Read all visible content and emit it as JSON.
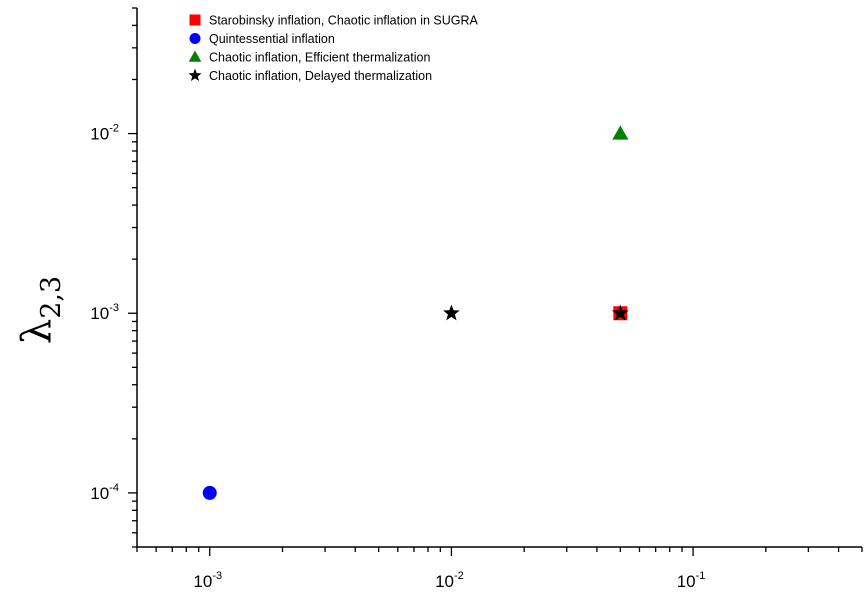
{
  "chart_data": {
    "type": "scatter",
    "title": "",
    "xlabel": "",
    "ylabel": {
      "symbol": "λ",
      "subscript": "2,3"
    },
    "x_scale": "log",
    "y_scale": "log",
    "xlim": [
      0.0005,
      0.5
    ],
    "ylim": [
      5e-05,
      0.05
    ],
    "x_ticks": [
      {
        "value": 0.001,
        "base": "10",
        "exp": "-3"
      },
      {
        "value": 0.01,
        "base": "10",
        "exp": "-2"
      },
      {
        "value": 0.1,
        "base": "10",
        "exp": "-1"
      }
    ],
    "y_ticks": [
      {
        "value": 0.0001,
        "base": "10",
        "exp": "-4"
      },
      {
        "value": 0.001,
        "base": "10",
        "exp": "-3"
      },
      {
        "value": 0.01,
        "base": "10",
        "exp": "-2"
      }
    ],
    "grid": false,
    "legend_position": "top-left",
    "series": [
      {
        "name": "Starobinsky inflation, Chaotic inflation in SUGRA",
        "marker": "square",
        "color": "#ff0000",
        "points": [
          {
            "x": 0.05,
            "y": 0.001
          }
        ]
      },
      {
        "name": "Quintessential inflation",
        "marker": "circle",
        "color": "#0000ff",
        "points": [
          {
            "x": 0.001,
            "y": 0.0001
          }
        ]
      },
      {
        "name": "Chaotic inflation, Efficient thermalization",
        "marker": "triangle",
        "color": "#008000",
        "points": [
          {
            "x": 0.05,
            "y": 0.01
          }
        ]
      },
      {
        "name": "Chaotic inflation, Delayed thermalization",
        "marker": "star",
        "color": "#000000",
        "points": [
          {
            "x": 0.01,
            "y": 0.001
          },
          {
            "x": 0.05,
            "y": 0.001
          }
        ]
      }
    ]
  }
}
